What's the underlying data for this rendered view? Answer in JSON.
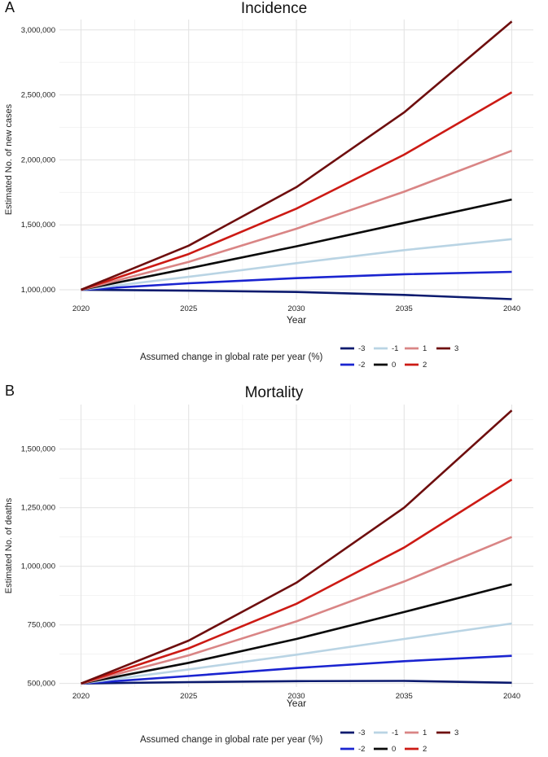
{
  "chart_data": [
    {
      "panel": "A",
      "type": "line",
      "title": "Incidence",
      "xlabel": "Year",
      "ylabel": "Estimated No. of new cases",
      "x": [
        2020,
        2025,
        2030,
        2035,
        2040
      ],
      "x_tick_labels": [
        "2020",
        "2025",
        "2030",
        "2035",
        "2040"
      ],
      "ylim": [
        925000,
        3080000
      ],
      "y_ticks": [
        1000000,
        1500000,
        2000000,
        2500000,
        3000000
      ],
      "y_tick_labels": [
        "1,000,000",
        "1,500,000",
        "2,000,000",
        "2,500,000",
        "3,000,000"
      ],
      "grid": true,
      "legend_title": "Assumed change in global rate per year (%)",
      "series": [
        {
          "name": "-3",
          "color": "#0b1a6e",
          "values": [
            1000000,
            993000,
            983000,
            961000,
            928000
          ]
        },
        {
          "name": "-2",
          "color": "#1a24d0",
          "values": [
            1000000,
            1050000,
            1090000,
            1120000,
            1138000
          ]
        },
        {
          "name": "-1",
          "color": "#b9d4e4",
          "values": [
            1000000,
            1100000,
            1205000,
            1305000,
            1390000
          ]
        },
        {
          "name": "0",
          "color": "#0a0a0a",
          "values": [
            1000000,
            1165000,
            1335000,
            1515000,
            1695000
          ]
        },
        {
          "name": "1",
          "color": "#d98585",
          "values": [
            1000000,
            1215000,
            1470000,
            1755000,
            2070000
          ]
        },
        {
          "name": "2",
          "color": "#cc1a14",
          "values": [
            1000000,
            1275000,
            1625000,
            2040000,
            2520000
          ]
        },
        {
          "name": "3",
          "color": "#6e0e0e",
          "values": [
            1000000,
            1340000,
            1790000,
            2365000,
            3065000
          ]
        }
      ]
    },
    {
      "panel": "B",
      "type": "line",
      "title": "Mortality",
      "xlabel": "Year",
      "ylabel": "Estimated No. of deaths",
      "x": [
        2020,
        2025,
        2030,
        2035,
        2040
      ],
      "x_tick_labels": [
        "2020",
        "2025",
        "2030",
        "2035",
        "2040"
      ],
      "ylim": [
        485000,
        1690000
      ],
      "y_ticks": [
        500000,
        750000,
        1000000,
        1250000,
        1500000
      ],
      "y_tick_labels": [
        "500,000",
        "750,000",
        "1,000,000",
        "1,250,000",
        "1,500,000"
      ],
      "grid": true,
      "legend_title": "Assumed change in global rate per year (%)",
      "series": [
        {
          "name": "-3",
          "color": "#0b1a6e",
          "values": [
            500000,
            506000,
            510000,
            511000,
            503000
          ]
        },
        {
          "name": "-2",
          "color": "#1a24d0",
          "values": [
            500000,
            532000,
            566000,
            595000,
            618000
          ]
        },
        {
          "name": "-1",
          "color": "#b9d4e4",
          "values": [
            500000,
            560000,
            623000,
            690000,
            756000
          ]
        },
        {
          "name": "0",
          "color": "#0a0a0a",
          "values": [
            500000,
            588000,
            690000,
            805000,
            923000
          ]
        },
        {
          "name": "1",
          "color": "#d98585",
          "values": [
            500000,
            620000,
            765000,
            935000,
            1125000
          ]
        },
        {
          "name": "2",
          "color": "#cc1a14",
          "values": [
            500000,
            650000,
            840000,
            1080000,
            1370000
          ]
        },
        {
          "name": "3",
          "color": "#6e0e0e",
          "values": [
            500000,
            683000,
            930000,
            1250000,
            1665000
          ]
        }
      ]
    }
  ]
}
